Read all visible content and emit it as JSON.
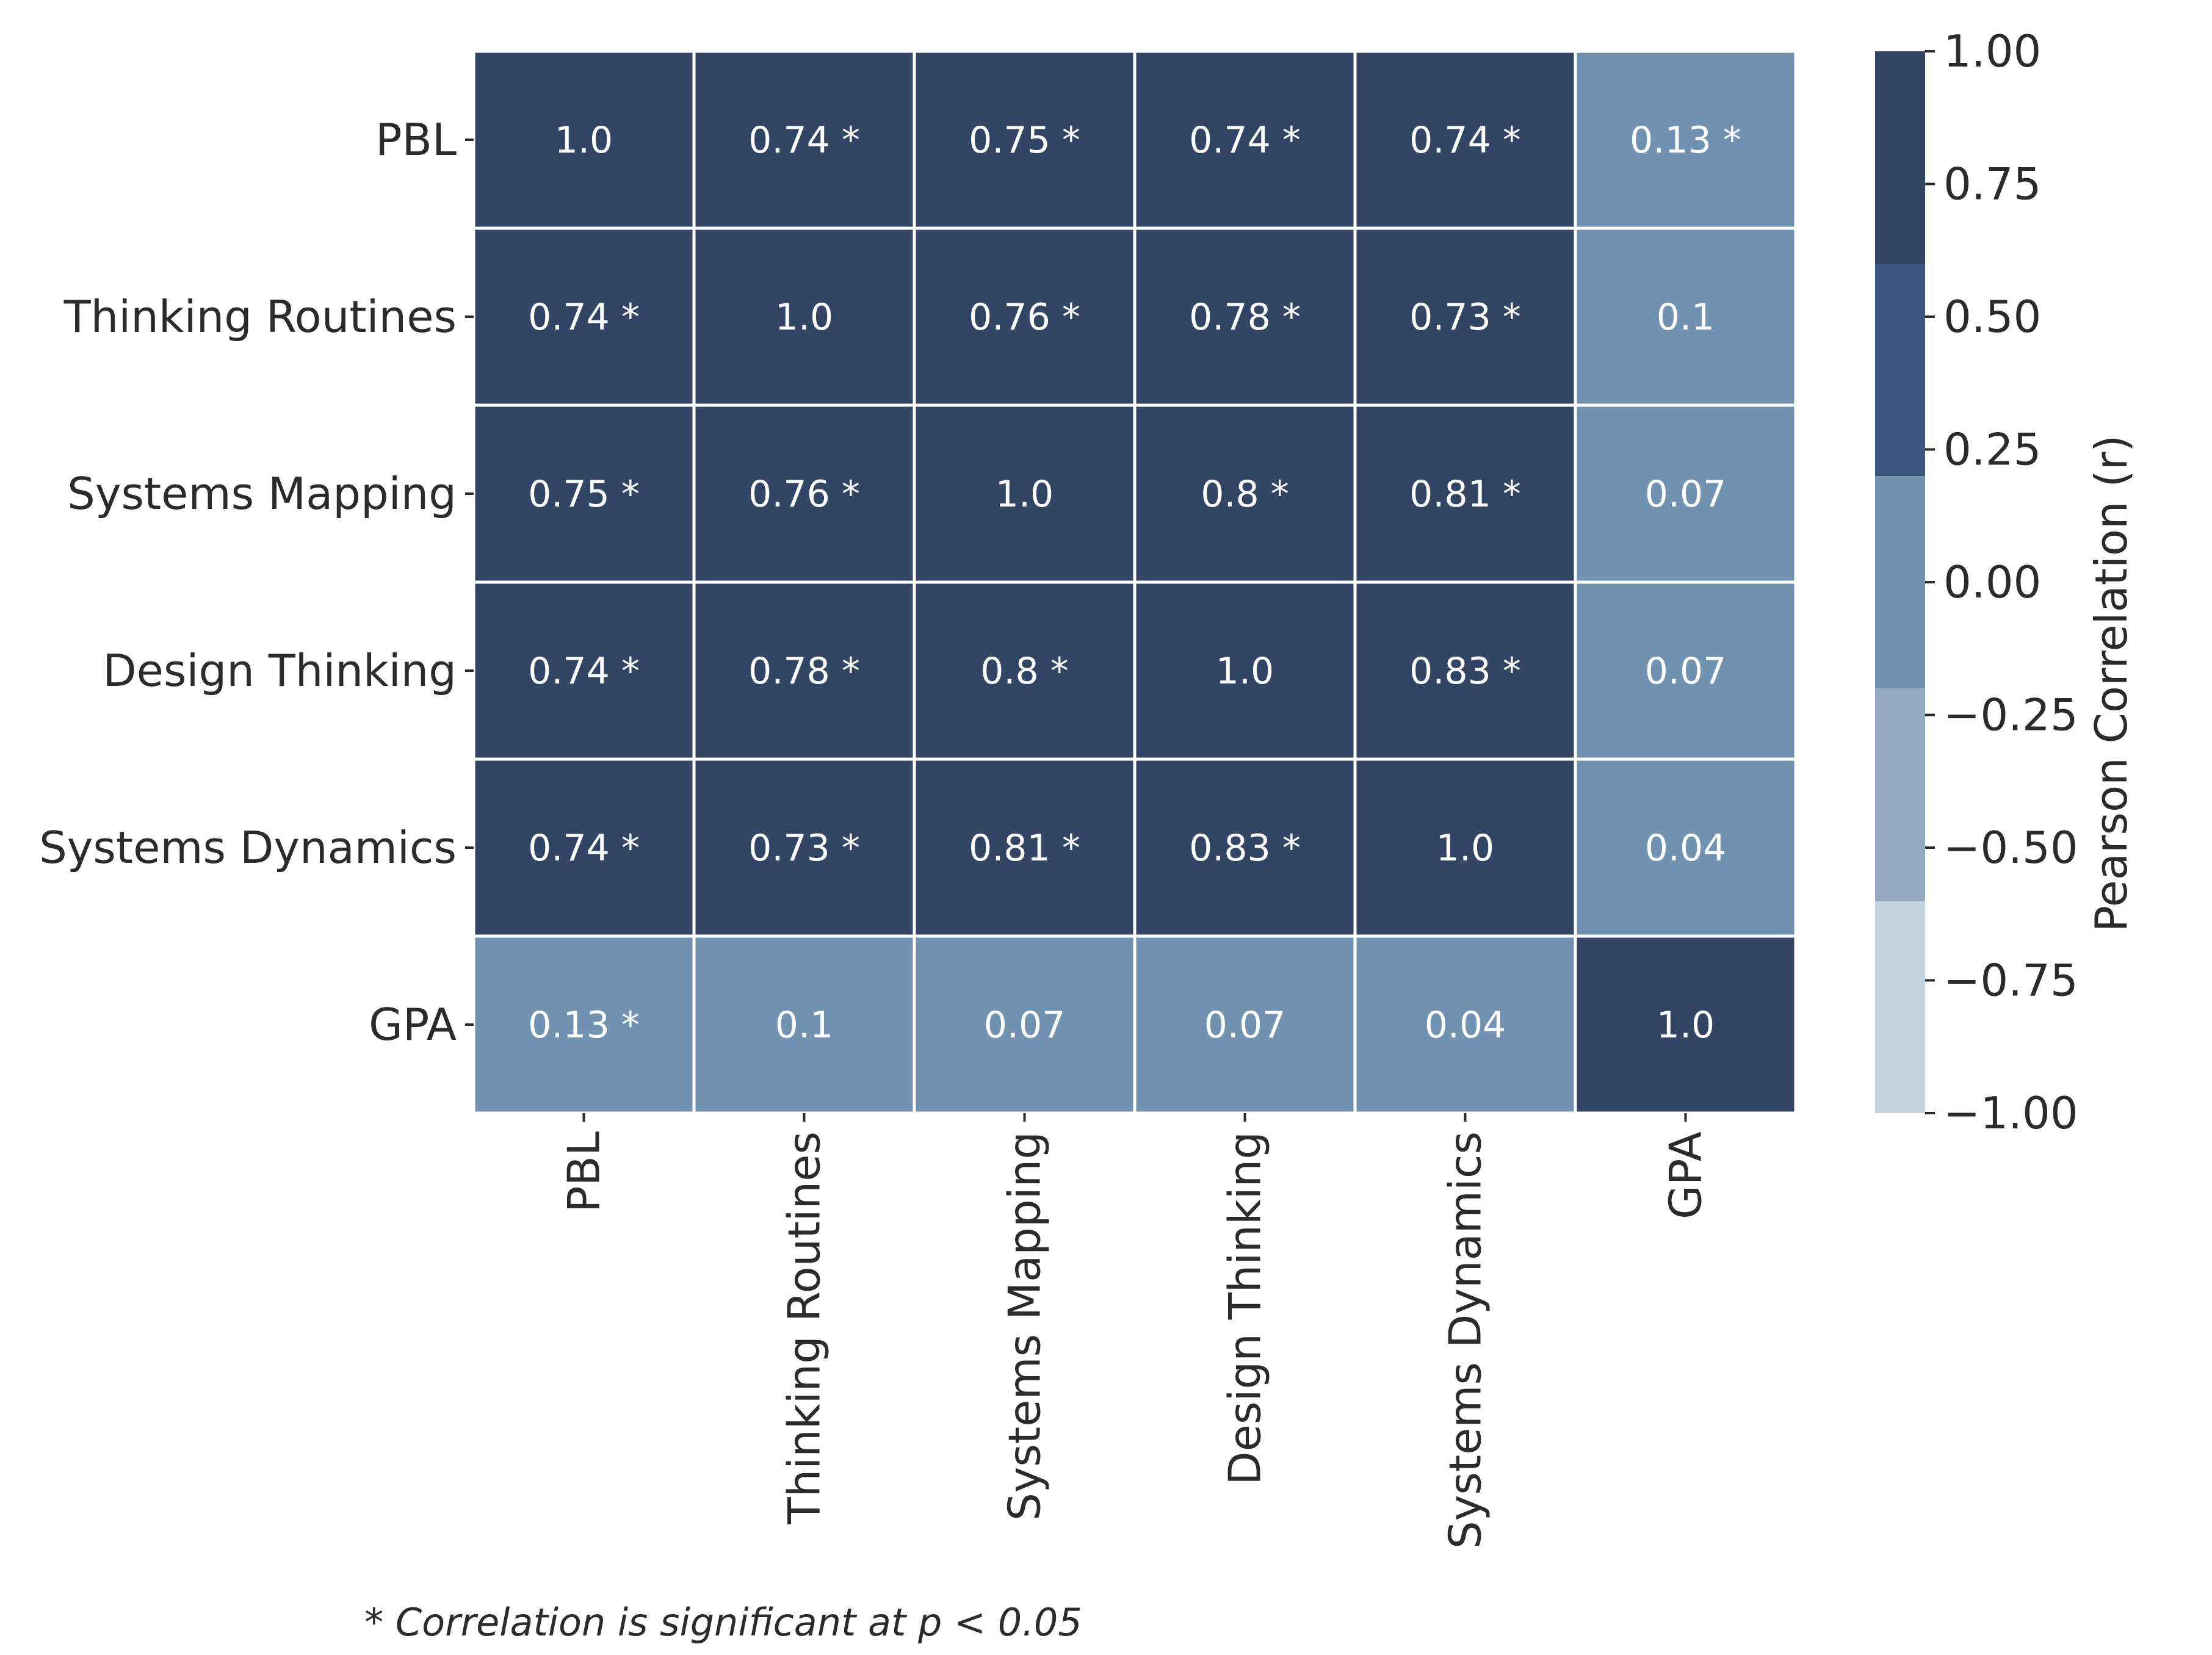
{
  "chart_data": {
    "type": "heatmap",
    "title": "",
    "row_labels": [
      "PBL",
      "Thinking Routines",
      "Systems Mapping",
      "Design Thinking",
      "Systems Dynamics",
      "GPA"
    ],
    "col_labels": [
      "PBL",
      "Thinking Routines",
      "Systems Mapping",
      "Design Thinking",
      "Systems Dynamics",
      "GPA"
    ],
    "values": [
      [
        1.0,
        0.74,
        0.75,
        0.74,
        0.74,
        0.13
      ],
      [
        0.74,
        1.0,
        0.76,
        0.78,
        0.73,
        0.1
      ],
      [
        0.75,
        0.76,
        1.0,
        0.8,
        0.81,
        0.07
      ],
      [
        0.74,
        0.78,
        0.8,
        1.0,
        0.83,
        0.07
      ],
      [
        0.74,
        0.73,
        0.81,
        0.83,
        1.0,
        0.04
      ],
      [
        0.13,
        0.1,
        0.07,
        0.07,
        0.04,
        1.0
      ]
    ],
    "cell_labels": [
      [
        "1.0",
        "0.74 *",
        "0.75 *",
        "0.74 *",
        "0.74 *",
        "0.13 *"
      ],
      [
        "0.74 *",
        "1.0",
        "0.76 *",
        "0.78 *",
        "0.73 *",
        "0.1"
      ],
      [
        "0.75 *",
        "0.76 *",
        "1.0",
        "0.8 *",
        "0.81 *",
        "0.07"
      ],
      [
        "0.74 *",
        "0.78 *",
        "0.8 *",
        "1.0",
        "0.83 *",
        "0.07"
      ],
      [
        "0.74 *",
        "0.73 *",
        "0.81 *",
        "0.83 *",
        "1.0",
        "0.04"
      ],
      [
        "0.13 *",
        "0.1",
        "0.07",
        "0.07",
        "0.04",
        "1.0"
      ]
    ],
    "colorbar": {
      "label": "Pearson Correlation (r)",
      "vmin": -1.0,
      "vmax": 1.0,
      "ticks": [
        1.0,
        0.75,
        0.5,
        0.25,
        0.0,
        -0.25,
        -0.5,
        -0.75,
        -1.0
      ],
      "tick_labels": [
        "1.00",
        "0.75",
        "0.50",
        "0.25",
        "0.00",
        "−0.25",
        "−0.50",
        "−0.75",
        "−1.00"
      ],
      "bins": [
        {
          "from": -1.0,
          "to": -0.6,
          "color": "#c5d2df"
        },
        {
          "from": -0.6,
          "to": -0.2,
          "color": "#95a9c0"
        },
        {
          "from": -0.2,
          "to": 0.2,
          "color": "#7192b0"
        },
        {
          "from": 0.2,
          "to": 0.6,
          "color": "#3c5781"
        },
        {
          "from": 0.6,
          "to": 1.0,
          "color": "#324565"
        }
      ]
    },
    "footnote": "* Correlation is significant at p < 0.05"
  }
}
